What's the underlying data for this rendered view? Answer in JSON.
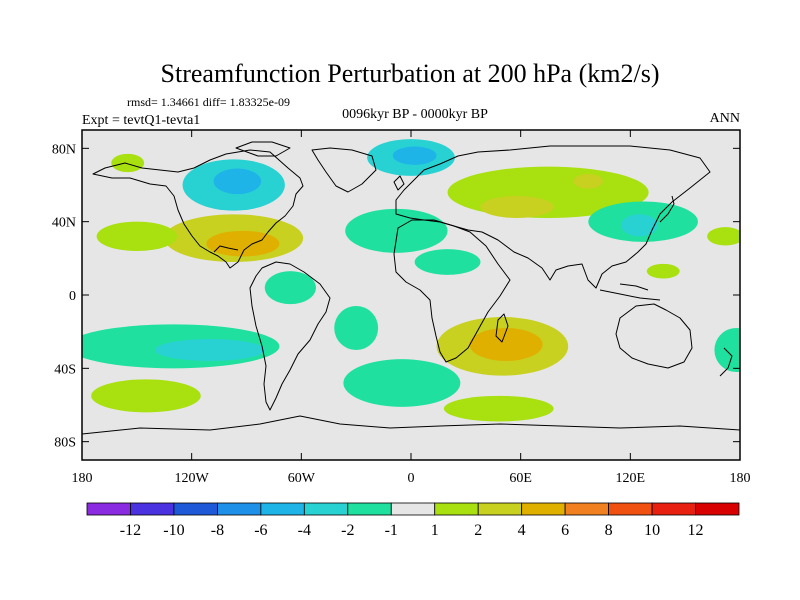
{
  "chart_data": {
    "type": "heatmap",
    "title": "Streamfunction Perturbation at 200 hPa (km2/s)",
    "stats": "rmsd= 1.34661  diff= 1.83325e-09",
    "experiment": "Expt = tevtQ1-tevta1",
    "period": "0096kyr BP - 0000kyr BP",
    "season": "ANN",
    "xlim": [
      -180,
      180
    ],
    "ylim": [
      -90,
      90
    ],
    "x_ticks": [
      {
        "value": -180,
        "label": "180"
      },
      {
        "value": -120,
        "label": "120W"
      },
      {
        "value": -60,
        "label": "60W"
      },
      {
        "value": 0,
        "label": "0"
      },
      {
        "value": 60,
        "label": "60E"
      },
      {
        "value": 120,
        "label": "120E"
      },
      {
        "value": 180,
        "label": "180"
      }
    ],
    "y_ticks": [
      {
        "value": 80,
        "label": "80N"
      },
      {
        "value": 40,
        "label": "40N"
      },
      {
        "value": 0,
        "label": "0"
      },
      {
        "value": -40,
        "label": "40S"
      },
      {
        "value": -80,
        "label": "80S"
      }
    ],
    "colorbar": {
      "labels": [
        "-12",
        "-10",
        "-8",
        "-6",
        "-4",
        "-2",
        "-1",
        "1",
        "2",
        "4",
        "6",
        "8",
        "10",
        "12"
      ],
      "colors": [
        "#8a2be2",
        "#4a32e0",
        "#1e5ad8",
        "#1e90e8",
        "#1eb4e8",
        "#28d2d2",
        "#20e0a0",
        "#e6e6e6",
        "#a8e010",
        "#c8d020",
        "#e0b000",
        "#f08020",
        "#f05010",
        "#e82010",
        "#d80000"
      ]
    },
    "features": [
      {
        "name": "centre-pacific-positive",
        "lon": -97,
        "lat": 31,
        "rlon": 38,
        "rlat": 13,
        "level": 2
      },
      {
        "name": "mexico-positive-core",
        "lon": -92,
        "lat": 28,
        "rlon": 20,
        "rlat": 7,
        "level": 3
      },
      {
        "name": "north-america-negative",
        "lon": -97,
        "lat": 60,
        "rlon": 28,
        "rlat": 14,
        "level": -2
      },
      {
        "name": "north-america-negative-core",
        "lon": -95,
        "lat": 62,
        "rlon": 13,
        "rlat": 7,
        "level": -3
      },
      {
        "name": "eastern-pacific-positive-arm",
        "lon": -150,
        "lat": 32,
        "rlon": 22,
        "rlat": 8,
        "level": 1
      },
      {
        "name": "alaska-positive",
        "lon": -155,
        "lat": 72,
        "rlon": 9,
        "rlat": 5,
        "level": 1
      },
      {
        "name": "atlantic-negative",
        "lon": -8,
        "lat": 35,
        "rlon": 28,
        "rlat": 12,
        "level": -1
      },
      {
        "name": "arctic-negative",
        "lon": 0,
        "lat": 75,
        "rlon": 24,
        "rlat": 10,
        "level": -2
      },
      {
        "name": "arctic-negative-core",
        "lon": 2,
        "lat": 76,
        "rlon": 12,
        "rlat": 5,
        "level": -3
      },
      {
        "name": "central-asia-positive",
        "lon": 75,
        "lat": 56,
        "rlon": 55,
        "rlat": 14,
        "level": 1
      },
      {
        "name": "central-asia-positive-core",
        "lon": 97,
        "lat": 62,
        "rlon": 8,
        "rlat": 4,
        "level": 2
      },
      {
        "name": "middle-east-positive",
        "lon": 58,
        "lat": 48,
        "rlon": 20,
        "rlat": 6,
        "level": 2
      },
      {
        "name": "east-asia-negative",
        "lon": 127,
        "lat": 40,
        "rlon": 30,
        "rlat": 11,
        "level": -1
      },
      {
        "name": "east-asia-negative-core",
        "lon": 125,
        "lat": 38,
        "rlon": 10,
        "rlat": 6,
        "level": -2
      },
      {
        "name": "west-pacific-positive",
        "lon": 138,
        "lat": 13,
        "rlon": 9,
        "rlat": 4,
        "level": 1
      },
      {
        "name": "south-africa-positive",
        "lon": 50,
        "lat": -28,
        "rlon": 36,
        "rlat": 16,
        "level": 2
      },
      {
        "name": "south-africa-positive-core",
        "lon": 52,
        "lat": -27,
        "rlon": 20,
        "rlat": 9,
        "level": 3
      },
      {
        "name": "south-pacific-negative",
        "lon": -130,
        "lat": -28,
        "rlon": 58,
        "rlat": 12,
        "level": -1
      },
      {
        "name": "south-pacific-negative-core",
        "lon": -110,
        "lat": -30,
        "rlon": 30,
        "rlat": 6,
        "level": -2
      },
      {
        "name": "equatorial-america-negative",
        "lon": -66,
        "lat": 4,
        "rlon": 14,
        "rlat": 9,
        "level": -1
      },
      {
        "name": "southern-ocean-negative",
        "lon": -5,
        "lat": -48,
        "rlon": 32,
        "rlat": 13,
        "level": -1
      },
      {
        "name": "south-atlantic-negative",
        "lon": -30,
        "lat": -18,
        "rlon": 12,
        "rlat": 12,
        "level": -1
      },
      {
        "name": "subantarctic-pacific-positive",
        "lon": -145,
        "lat": -55,
        "rlon": 30,
        "rlat": 9,
        "level": 1
      },
      {
        "name": "southern-indian-positive",
        "lon": 48,
        "lat": -62,
        "rlon": 30,
        "rlat": 7,
        "level": 1
      },
      {
        "name": "new-zealand-negative",
        "lon": 178,
        "lat": -30,
        "rlon": 12,
        "rlat": 12,
        "level": -1
      },
      {
        "name": "north-africa-negative",
        "lon": 20,
        "lat": 18,
        "rlon": 18,
        "rlat": 7,
        "level": -1
      },
      {
        "name": "far-east-positive",
        "lon": 172,
        "lat": 32,
        "rlon": 10,
        "rlat": 5,
        "level": 1
      }
    ]
  }
}
